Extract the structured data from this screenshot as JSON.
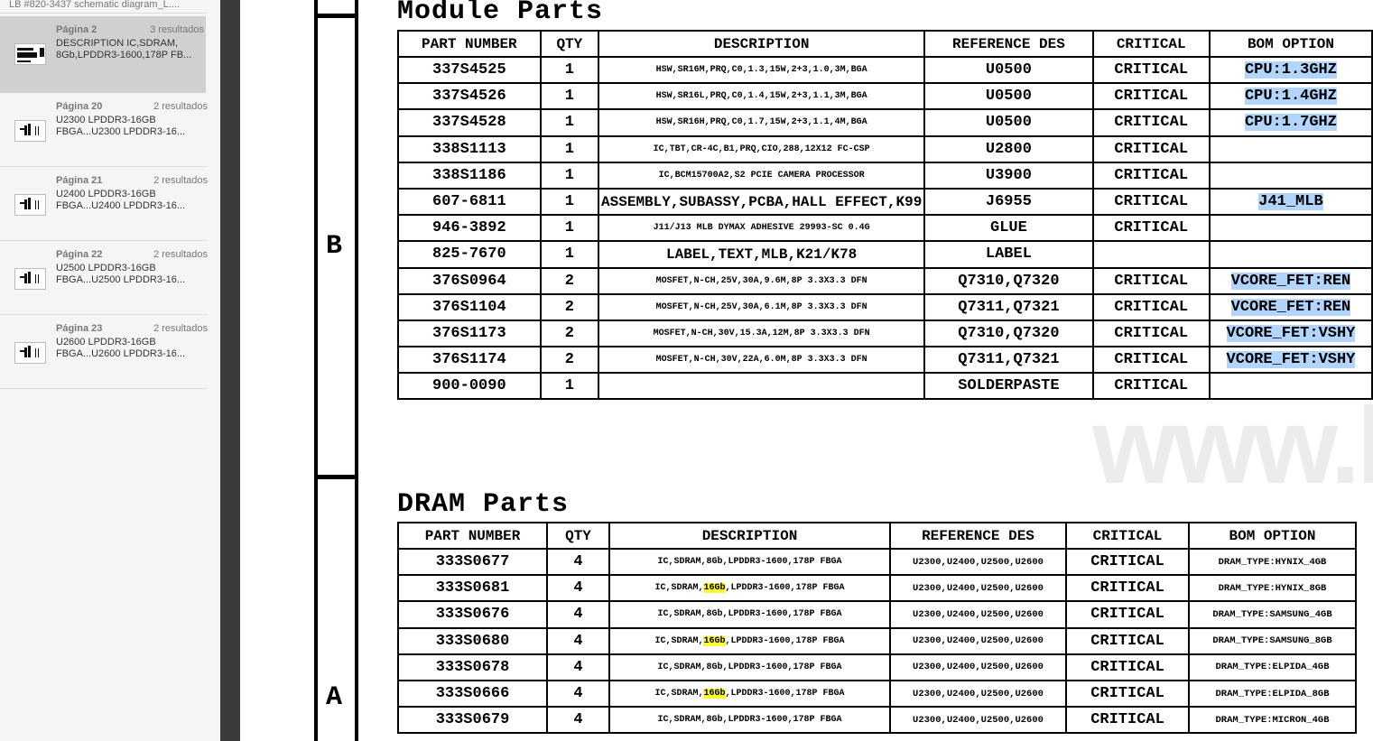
{
  "sidebar": {
    "title": "LB #820-3437 schematic diagram_L....",
    "results": [
      {
        "page": "Página 2",
        "count": "3 resultados",
        "text": "DESCRIPTION IC,SDRAM, 8Gb,LPDDR3-1600,178P FB...",
        "selected": true
      },
      {
        "page": "Página 20",
        "count": "2 resultados",
        "text": "U2300 LPDDR3-16GB FBGA...U2300 LPDDR3-16..."
      },
      {
        "page": "Página 21",
        "count": "2 resultados",
        "text": "U2400 LPDDR3-16GB FBGA...U2400 LPDDR3-16..."
      },
      {
        "page": "Página 22",
        "count": "2 resultados",
        "text": "U2500 LPDDR3-16GB FBGA...U2500 LPDDR3-16..."
      },
      {
        "page": "Página 23",
        "count": "2 resultados",
        "text": "U2600 LPDDR3-16GB FBGA...U2600 LPDDR3-16..."
      }
    ]
  },
  "document": {
    "zones": [
      "B",
      "A"
    ],
    "watermark": "www.l",
    "highlight_colors": {
      "selection": "#b3d4fc",
      "search": "#ffff33"
    },
    "module": {
      "title": "Module Parts",
      "headers": [
        "PART NUMBER",
        "QTY",
        "DESCRIPTION",
        "REFERENCE DES",
        "CRITICAL",
        "BOM OPTION"
      ],
      "rows": [
        [
          "337S4525",
          "1",
          "HSW,SR16M,PRQ,C0,1.3,15W,2+3,1.0,3M,BGA",
          "U0500",
          "CRITICAL",
          "CPU:1.3GHZ"
        ],
        [
          "337S4526",
          "1",
          "HSW,SR16L,PRQ,C0,1.4,15W,2+3,1.1,3M,BGA",
          "U0500",
          "CRITICAL",
          "CPU:1.4GHZ"
        ],
        [
          "337S4528",
          "1",
          "HSW,SR16H,PRQ,C0,1.7,15W,2+3,1.1,4M,BGA",
          "U0500",
          "CRITICAL",
          "CPU:1.7GHZ"
        ],
        [
          "338S1113",
          "1",
          "IC,TBT,CR-4C,B1,PRQ,CIO,288,12X12 FC-CSP",
          "U2800",
          "CRITICAL",
          ""
        ],
        [
          "338S1186",
          "1",
          "IC,BCM15700A2,S2 PCIE CAMERA PROCESSOR",
          "U3900",
          "CRITICAL",
          ""
        ],
        [
          "607-6811",
          "1",
          "ASSEMBLY,SUBASSY,PCBA,HALL EFFECT,K99",
          "J6955",
          "CRITICAL",
          "J41_MLB"
        ],
        [
          "946-3892",
          "1",
          "J11/J13 MLB DYMAX ADHESIVE 29993-SC 0.4G",
          "GLUE",
          "CRITICAL",
          ""
        ],
        [
          "825-7670",
          "1",
          "LABEL,TEXT,MLB,K21/K78",
          "LABEL",
          "",
          ""
        ],
        [
          "376S0964",
          "2",
          "MOSFET,N-CH,25V,30A,9.6M,8P 3.3X3.3 DFN",
          "Q7310,Q7320",
          "CRITICAL",
          "VCORE_FET:REN"
        ],
        [
          "376S1104",
          "2",
          "MOSFET,N-CH,25V,30A,6.1M,8P 3.3X3.3 DFN",
          "Q7311,Q7321",
          "CRITICAL",
          "VCORE_FET:REN"
        ],
        [
          "376S1173",
          "2",
          "MOSFET,N-CH,30V,15.3A,12M,8P 3.3X3.3 DFN",
          "Q7310,Q7320",
          "CRITICAL",
          "VCORE_FET:VSHY"
        ],
        [
          "376S1174",
          "2",
          "MOSFET,N-CH,30V,22A,6.0M,8P 3.3X3.3 DFN",
          "Q7311,Q7321",
          "CRITICAL",
          "VCORE_FET:VSHY"
        ],
        [
          "900-0090",
          "1",
          "",
          "SOLDERPASTE",
          "CRITICAL",
          ""
        ]
      ]
    },
    "dram": {
      "title": "DRAM Parts",
      "headers": [
        "PART NUMBER",
        "QTY",
        "DESCRIPTION",
        "REFERENCE DES",
        "CRITICAL",
        "BOM OPTION"
      ],
      "rows": [
        [
          "333S0677",
          "4",
          "IC,SDRAM,8Gb,LPDDR3-1600,178P FBGA",
          "U2300,U2400,U2500,U2600",
          "CRITICAL",
          "DRAM_TYPE:HYNIX_4GB"
        ],
        [
          "333S0681",
          "4",
          "IC,SDRAM,16Gb,LPDDR3-1600,178P FBGA",
          "U2300,U2400,U2500,U2600",
          "CRITICAL",
          "DRAM_TYPE:HYNIX_8GB"
        ],
        [
          "333S0676",
          "4",
          "IC,SDRAM,8Gb,LPDDR3-1600,178P FBGA",
          "U2300,U2400,U2500,U2600",
          "CRITICAL",
          "DRAM_TYPE:SAMSUNG_4GB"
        ],
        [
          "333S0680",
          "4",
          "IC,SDRAM,16Gb,LPDDR3-1600,178P FBGA",
          "U2300,U2400,U2500,U2600",
          "CRITICAL",
          "DRAM_TYPE:SAMSUNG_8GB"
        ],
        [
          "333S0678",
          "4",
          "IC,SDRAM,8Gb,LPDDR3-1600,178P FBGA",
          "U2300,U2400,U2500,U2600",
          "CRITICAL",
          "DRAM_TYPE:ELPIDA_4GB"
        ],
        [
          "333S0666",
          "4",
          "IC,SDRAM,16Gb,LPDDR3-1600,178P FBGA",
          "U2300,U2400,U2500,U2600",
          "CRITICAL",
          "DRAM_TYPE:ELPIDA_8GB"
        ],
        [
          "333S0679",
          "4",
          "IC,SDRAM,8Gb,LPDDR3-1600,178P FBGA",
          "U2300,U2400,U2500,U2600",
          "CRITICAL",
          "DRAM_TYPE:MICRON_4GB"
        ]
      ]
    }
  }
}
